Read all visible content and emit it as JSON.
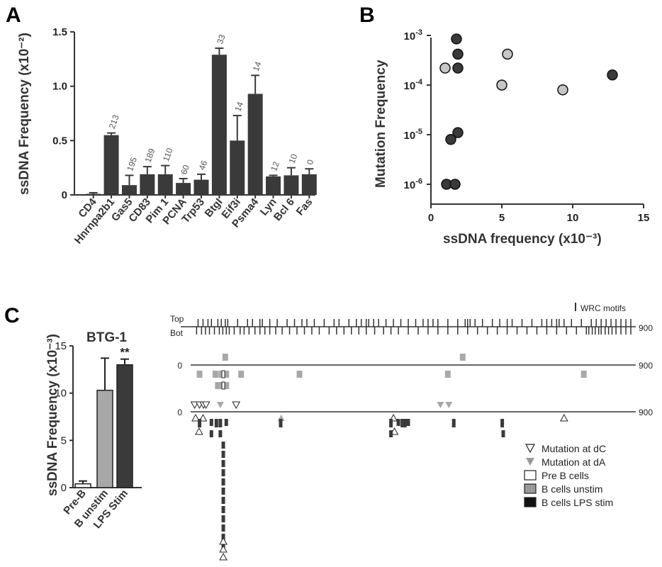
{
  "panels": [
    "A",
    "B",
    "C"
  ],
  "colors": {
    "dark": "#3a3a3a",
    "gray": "#a8a8a8",
    "lightgray": "#c6c6c6",
    "axis": "#333333"
  },
  "chart_data": [
    {
      "type": "bar",
      "ylabel": "ssDNA Frequency (x10⁻²)",
      "ylim": [
        0,
        1.5
      ],
      "yticks": [
        "0",
        "0.5",
        "1.0",
        "1.5"
      ],
      "categories": [
        "CD4",
        "Hnrnpa2b1",
        "Gas5",
        "CD83",
        "Pim 1",
        "PCNA",
        "Trp53",
        "BtgI",
        "Eif3i",
        "Psma4",
        "Lyn",
        "Bcl 6",
        "Fas"
      ],
      "values": [
        0.01,
        0.55,
        0.09,
        0.19,
        0.19,
        0.11,
        0.14,
        1.29,
        0.5,
        0.93,
        0.17,
        0.18,
        0.19
      ],
      "errors": [
        0.01,
        0.02,
        0.09,
        0.07,
        0.08,
        0.04,
        0.05,
        0.06,
        0.23,
        0.17,
        0.01,
        0.07,
        0.05
      ],
      "annotations": [
        "",
        "213",
        "195",
        "189",
        "110",
        "60",
        "46",
        "33",
        "14",
        "14",
        "12",
        "10",
        "0"
      ]
    },
    {
      "type": "scatter",
      "xlabel": "ssDNA frequency (x10⁻³)",
      "ylabel": "Mutation Frequency",
      "xlim": [
        0,
        15
      ],
      "xticks": [
        "0",
        "5",
        "10",
        "15"
      ],
      "ylim": [
        1e-06,
        0.001
      ],
      "yscale": "log",
      "ytick_labels": [
        {
          "base": "10",
          "exp": "-3"
        },
        {
          "base": "10",
          "exp": "-4"
        },
        {
          "base": "10",
          "exp": "-5"
        },
        {
          "base": "10",
          "exp": "-6"
        }
      ],
      "points": [
        {
          "x": 1.8,
          "y": 0.00085,
          "group": "dark"
        },
        {
          "x": 1.9,
          "y": 0.00042,
          "group": "dark"
        },
        {
          "x": 1.9,
          "y": 0.00022,
          "group": "dark"
        },
        {
          "x": 1.0,
          "y": 0.00022,
          "group": "light"
        },
        {
          "x": 5.4,
          "y": 0.00042,
          "group": "light"
        },
        {
          "x": 5.0,
          "y": 0.0001,
          "group": "light"
        },
        {
          "x": 9.3,
          "y": 8e-05,
          "group": "light"
        },
        {
          "x": 12.8,
          "y": 0.00016,
          "group": "dark"
        },
        {
          "x": 1.9,
          "y": 1.1e-05,
          "group": "dark"
        },
        {
          "x": 1.4,
          "y": 8e-06,
          "group": "dark"
        },
        {
          "x": 1.1,
          "y": 1e-06,
          "group": "dark"
        },
        {
          "x": 1.7,
          "y": 1e-06,
          "group": "dark"
        }
      ]
    },
    {
      "type": "bar",
      "title": "BTG-1",
      "ylabel": "ssDNA Frequency (x10⁻³)",
      "ylim": [
        0,
        15
      ],
      "yticks": [
        "0",
        "5",
        "10",
        "15"
      ],
      "categories": [
        "Pre-B",
        "B unstim",
        "LPS Stim"
      ],
      "values": [
        0.4,
        10.3,
        13.0
      ],
      "errors": [
        0.3,
        3.4,
        0.6
      ],
      "fills": [
        "white",
        "gray",
        "dark"
      ],
      "significance": "**"
    }
  ],
  "map": {
    "track_labels": {
      "top": "Top",
      "bot": "Bot"
    },
    "legend_wrc": "WRC motifs",
    "axis_start": "0",
    "axis_end": "900",
    "wrc_top": [
      15,
      25,
      35,
      42,
      55,
      62,
      70,
      75,
      95,
      115,
      125,
      140,
      145,
      160,
      175,
      195,
      210,
      225,
      235,
      250,
      270,
      290,
      300,
      320,
      335,
      345,
      355,
      360,
      370,
      380,
      395,
      410,
      425,
      440,
      455,
      470,
      480,
      490,
      500,
      520,
      540,
      555,
      560,
      565,
      575,
      590,
      610,
      625,
      640,
      650,
      670,
      690,
      710,
      720,
      730,
      740,
      745,
      755,
      770,
      790,
      810,
      820,
      830,
      840,
      850,
      860,
      870,
      880,
      890
    ],
    "wrc_bot": [
      12,
      22,
      30,
      38,
      48,
      58,
      65,
      72,
      78,
      88,
      100,
      108,
      118,
      130,
      140,
      150,
      160,
      172,
      185,
      200,
      215,
      230,
      245,
      260,
      280,
      295,
      310,
      325,
      340,
      355,
      372,
      390,
      405,
      420,
      440,
      460,
      480,
      500,
      520,
      540,
      560,
      580,
      600,
      620,
      640,
      660,
      680,
      700,
      720,
      740,
      760,
      780,
      800,
      805,
      812,
      818,
      825,
      830,
      838,
      845,
      852,
      860,
      870,
      880,
      890
    ],
    "unstim_above": [
      70,
      550
    ],
    "unstim_below": [
      18,
      50,
      62,
      72,
      102,
      220,
      520,
      795
    ],
    "unstim_below2": [
      55,
      62,
      72
    ],
    "preb": [
      66,
      66
    ],
    "dC_above": [
      8,
      18,
      26,
      31,
      92
    ],
    "dA_above": [
      60,
      505,
      522
    ],
    "dC_below": [
      10,
      25,
      410,
      755
    ],
    "dC_below2": [
      17,
      412
    ],
    "dA_below": [
      183
    ],
    "stim_below": [
      18,
      42,
      52,
      60,
      72,
      182,
      405,
      420,
      428,
      433,
      440,
      532,
      630
    ],
    "stim_col": 66,
    "stim_col_count": 12,
    "col_dC_tail": 3
  },
  "legend": {
    "items": [
      {
        "label": "Mutation at dC",
        "kind": "tri-down-open"
      },
      {
        "label": "Mutation at dA",
        "kind": "tri-down-gray"
      },
      {
        "label": "Pre B cells",
        "kind": "box-white"
      },
      {
        "label": "B cells unstim",
        "kind": "box-gray"
      },
      {
        "label": "B cells LPS stim",
        "kind": "box-dark"
      }
    ]
  }
}
